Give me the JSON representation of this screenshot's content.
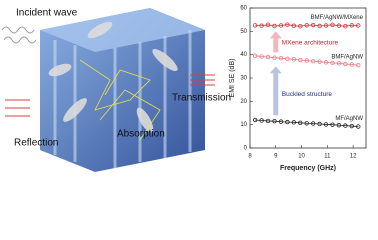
{
  "illustration": {
    "labels": [
      "Incident wave",
      "Transmission",
      "Absorption",
      "Reflection"
    ]
  },
  "chart_data": {
    "type": "line",
    "xlabel": "Frequency (GHz)",
    "ylabel": "EMI SE (dB)",
    "annotations": [
      "MXene architecture",
      "Buckled structure"
    ],
    "x": [
      8.2,
      8.45,
      8.7,
      8.95,
      9.2,
      9.45,
      9.7,
      9.95,
      10.2,
      10.45,
      10.7,
      10.95,
      11.2,
      11.45,
      11.7,
      11.95,
      12.2
    ],
    "series": [
      {
        "name": "BMF/AgNW/MXene",
        "color": "#e8283c",
        "values": [
          52.6,
          52.4,
          52.8,
          52.3,
          52.5,
          52.9,
          52.4,
          52.2,
          52.6,
          52.7,
          52.3,
          52.5,
          52.8,
          52.4,
          52.2,
          52.6,
          52.5
        ]
      },
      {
        "name": "BMF/AgNW",
        "color": "#f07a86",
        "values": [
          39.5,
          39.2,
          39.0,
          38.7,
          38.5,
          38.2,
          38.0,
          37.7,
          37.5,
          37.2,
          37.0,
          36.7,
          36.5,
          36.3,
          36.0,
          35.8,
          35.5
        ]
      },
      {
        "name": "MF/AgNW",
        "color": "#222222",
        "values": [
          12.0,
          11.8,
          11.6,
          11.5,
          11.3,
          11.1,
          11.0,
          10.8,
          10.6,
          10.5,
          10.3,
          10.1,
          10.0,
          9.8,
          9.6,
          9.4,
          9.2
        ]
      }
    ],
    "xlim": [
      8,
      12.5
    ],
    "xticks": [
      8,
      9,
      10,
      11,
      12
    ],
    "ylim": [
      0,
      60
    ],
    "yticks": [
      0,
      10,
      20,
      30,
      40,
      50,
      60
    ]
  }
}
